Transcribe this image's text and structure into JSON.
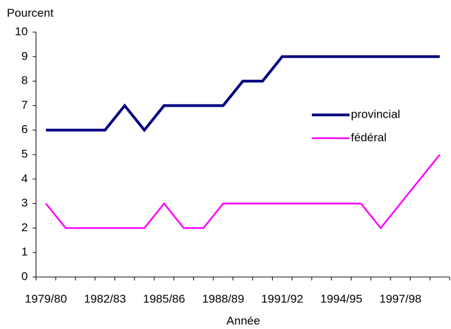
{
  "chart_data": {
    "type": "line",
    "ylabel": "Pourcent",
    "xlabel": "Année",
    "categories": [
      "1979/80",
      null,
      null,
      "1982/83",
      null,
      null,
      "1985/86",
      null,
      null,
      "1988/89",
      null,
      null,
      "1991/92",
      null,
      null,
      "1994/95",
      null,
      null,
      "1997/98",
      null,
      null
    ],
    "series": [
      {
        "name": "provincial",
        "color": "#000080",
        "values": [
          6,
          6,
          6,
          6,
          7,
          6,
          7,
          7,
          7,
          7,
          8,
          8,
          9,
          9,
          9,
          9,
          9,
          9,
          9,
          9,
          9
        ]
      },
      {
        "name": "fédéral",
        "color": "#ff00ff",
        "values": [
          3,
          2,
          2,
          2,
          2,
          2,
          3,
          2,
          2,
          3,
          3,
          3,
          3,
          3,
          3,
          3,
          3,
          2,
          3,
          4,
          5
        ]
      }
    ],
    "ylim": [
      0,
      10
    ],
    "yticks": [
      0,
      1,
      2,
      3,
      4,
      5,
      6,
      7,
      8,
      9,
      10
    ],
    "legend": "right"
  }
}
